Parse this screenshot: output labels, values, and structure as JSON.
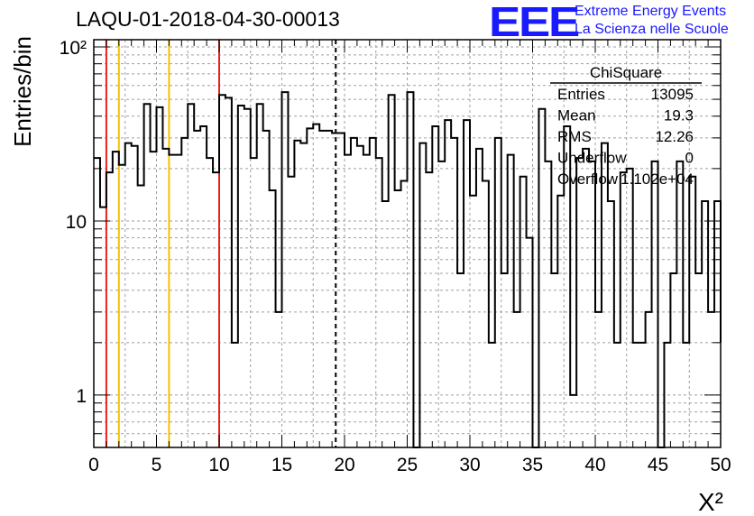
{
  "header": {
    "title": "LAQU-01-2018-04-30-00013"
  },
  "logo": {
    "mark": "EEE",
    "line1": "Extreme Energy Events",
    "line2": "La Scienza nelle Scuole"
  },
  "colors": {
    "histogram": "#000000",
    "red_lines": "#e8201a",
    "yellow_lines": "#f5c000",
    "mean_line": "#000000",
    "grid": "#9aa0a6"
  },
  "chart_data": {
    "type": "histogram",
    "title": "LAQU-01-2018-04-30-00013",
    "xlabel": "X²",
    "ylabel": "Entries/bin",
    "xlim": [
      0,
      50
    ],
    "ylim": [
      0.5,
      110
    ],
    "yscale": "log",
    "grid": true,
    "bin_width": 0.5,
    "xticks": [
      "0",
      "5",
      "10",
      "15",
      "20",
      "25",
      "30",
      "35",
      "40",
      "45",
      "50"
    ],
    "yticks": [
      {
        "value": 1,
        "label": "1"
      },
      {
        "value": 10,
        "label": "10"
      },
      {
        "value": 100,
        "label": "10²"
      }
    ],
    "values": [
      23,
      12,
      19,
      25,
      21,
      28,
      27,
      16,
      47,
      25,
      45,
      26,
      24,
      24,
      30,
      47,
      33,
      35,
      23,
      19,
      53,
      51,
      2,
      46,
      44,
      23,
      47,
      33,
      15,
      3,
      55,
      18,
      29,
      28,
      34,
      36,
      33,
      33,
      32,
      32,
      24,
      30,
      27,
      24,
      30,
      23,
      13,
      53,
      15,
      17,
      55,
      0,
      28,
      19,
      35,
      22,
      38,
      30,
      5,
      38,
      14,
      26,
      17,
      2,
      30,
      5,
      24,
      3,
      18,
      8,
      0,
      44,
      22,
      5,
      14,
      35,
      1,
      23,
      26,
      22,
      3,
      28,
      13,
      2,
      19,
      20,
      2,
      2,
      3,
      22,
      0,
      2,
      5,
      22,
      2,
      18,
      5,
      13,
      3,
      13,
      2
    ],
    "vertical_lines": [
      {
        "x": 1,
        "color": "red"
      },
      {
        "x": 2,
        "color": "yellow"
      },
      {
        "x": 6,
        "color": "yellow"
      },
      {
        "x": 10,
        "color": "red"
      },
      {
        "x": 19.3,
        "color": "black-dashed"
      }
    ],
    "stats_box": {
      "title": "ChiSquare",
      "rows": [
        {
          "label": "Entries",
          "value": "13095"
        },
        {
          "label": "Mean",
          "value": "19.3"
        },
        {
          "label": "RMS",
          "value": "12.26"
        },
        {
          "label": "Underflow",
          "value": "0"
        },
        {
          "label": "Overflow",
          "value": "1.102e+04"
        }
      ]
    }
  }
}
